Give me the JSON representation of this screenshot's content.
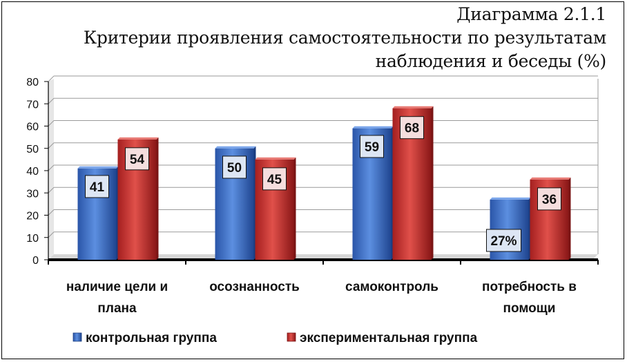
{
  "chart_data": {
    "type": "bar",
    "title": "Диаграмма 2.1.1",
    "subtitle_lines": [
      "Критерии проявления самостоятельности по результатам",
      "наблюдения и беседы (%)"
    ],
    "categories": [
      [
        "наличие цели и",
        "плана"
      ],
      [
        "осознанность"
      ],
      [
        "самоконтроль"
      ],
      [
        "потребность в",
        "помощи"
      ]
    ],
    "series": [
      {
        "name": "контрольная группа",
        "values": [
          41,
          50,
          59,
          27
        ],
        "labels": [
          "41",
          "50",
          "59",
          "27%"
        ],
        "color": "#3a6fc4"
      },
      {
        "name": "экспериментальная группа",
        "values": [
          54,
          45,
          68,
          36
        ],
        "labels": [
          "54",
          "45",
          "68",
          "36"
        ],
        "color": "#c8302d"
      }
    ],
    "ylim": [
      0,
      80
    ],
    "yticks": [
      0,
      10,
      20,
      30,
      40,
      50,
      60,
      70,
      80
    ],
    "grid": true,
    "legend": "bottom"
  }
}
